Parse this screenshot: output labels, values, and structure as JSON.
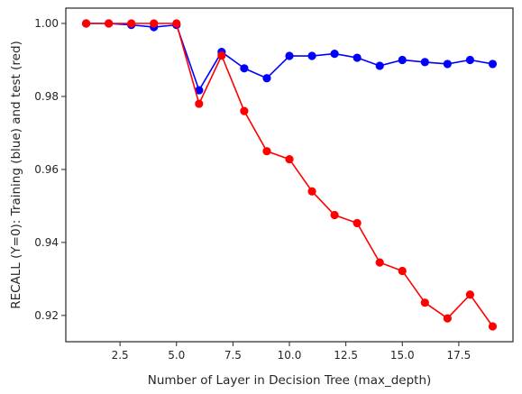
{
  "chart_data": {
    "type": "line",
    "title": "",
    "xlabel": "Number of Layer in Decision Tree (max_depth)",
    "ylabel": "RECALL (Y=0): Training (blue) and test (red)",
    "xlim": [
      0.1,
      19.9
    ],
    "ylim": [
      0.9128,
      1.0042
    ],
    "x_ticks": [
      2.5,
      5.0,
      7.5,
      10.0,
      12.5,
      15.0,
      17.5
    ],
    "x_tick_labels": [
      "2.5",
      "5.0",
      "7.5",
      "10.0",
      "12.5",
      "15.0",
      "17.5"
    ],
    "y_ticks": [
      0.92,
      0.94,
      0.96,
      0.98,
      1.0
    ],
    "y_tick_labels": [
      "0.92",
      "0.94",
      "0.96",
      "0.98",
      "1.00"
    ],
    "grid": false,
    "x": [
      1,
      2,
      3,
      4,
      5,
      6,
      7,
      8,
      9,
      10,
      11,
      12,
      13,
      14,
      15,
      16,
      17,
      18,
      19
    ],
    "series": [
      {
        "color": "#0000ff",
        "marker": "circle",
        "values": [
          1.0,
          1.0,
          0.9996,
          0.999,
          0.9996,
          0.9817,
          0.9922,
          0.9877,
          0.985,
          0.9911,
          0.9911,
          0.9917,
          0.9906,
          0.9884,
          0.99,
          0.9894,
          0.9889,
          0.99,
          0.9889
        ]
      },
      {
        "color": "#ff0000",
        "marker": "circle",
        "values": [
          1.0,
          1.0,
          1.0,
          1.0,
          1.0,
          0.978,
          0.9912,
          0.976,
          0.965,
          0.9628,
          0.954,
          0.9475,
          0.9453,
          0.9345,
          0.9322,
          0.9235,
          0.9192,
          0.9257,
          0.917
        ]
      }
    ]
  }
}
